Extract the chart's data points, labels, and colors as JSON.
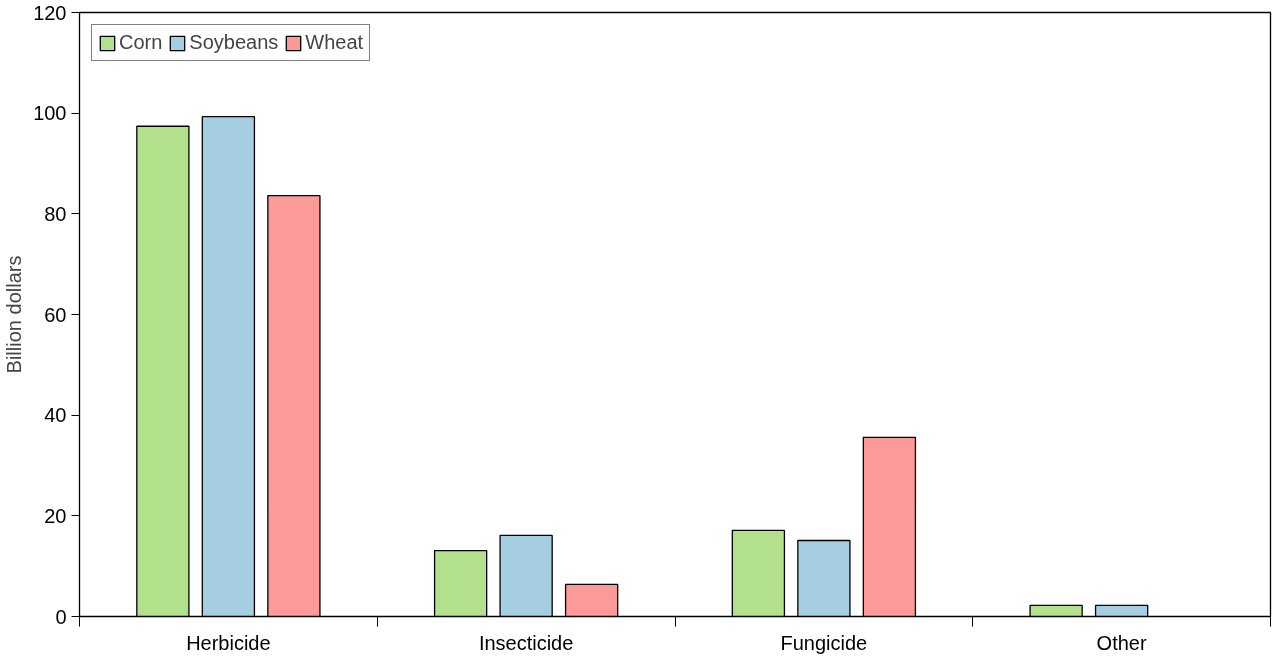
{
  "chart_data": {
    "type": "bar",
    "ylabel": "Billion dollars",
    "categories": [
      "Herbicide",
      "Insecticide",
      "Fungicide",
      "Other"
    ],
    "series": [
      {
        "name": "Corn",
        "color": "#b3e08b",
        "values": [
          97.4,
          13.1,
          17.1,
          2.2
        ]
      },
      {
        "name": "Soybeans",
        "color": "#a6cee3",
        "values": [
          99.3,
          16.1,
          15.1,
          2.2
        ]
      },
      {
        "name": "Wheat",
        "color": "#fb9a99",
        "values": [
          83.6,
          6.4,
          35.6,
          null
        ]
      }
    ],
    "ylim": [
      0,
      120
    ],
    "yticks": [
      0,
      20,
      40,
      60,
      80,
      100,
      120
    ],
    "grid": false,
    "legend": "top left"
  }
}
